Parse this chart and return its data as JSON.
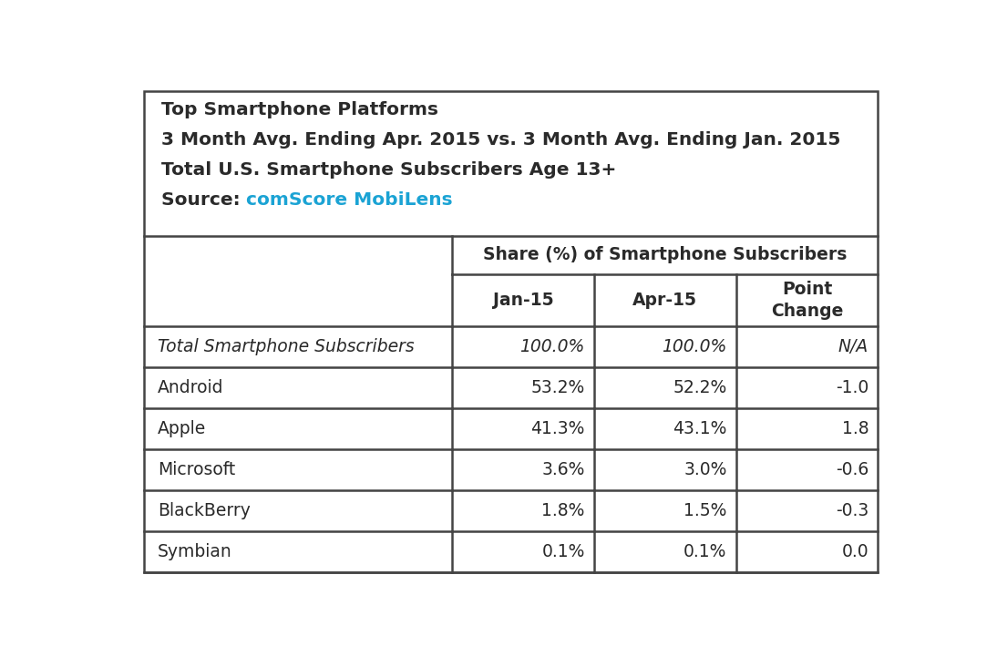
{
  "source_text": "comScore MobiLens",
  "source_color": "#1ba3d4",
  "header_span": "Share (%) of Smartphone Subscribers",
  "col_headers": [
    "Jan-15",
    "Apr-15",
    "Point\nChange"
  ],
  "rows": [
    {
      "label": "Total Smartphone Subscribers",
      "italic": true,
      "jan": "100.0%",
      "apr": "100.0%",
      "change": "N/A"
    },
    {
      "label": "Android",
      "italic": false,
      "jan": "53.2%",
      "apr": "52.2%",
      "change": "-1.0"
    },
    {
      "label": "Apple",
      "italic": false,
      "jan": "41.3%",
      "apr": "43.1%",
      "change": "1.8"
    },
    {
      "label": "Microsoft",
      "italic": false,
      "jan": "3.6%",
      "apr": "3.0%",
      "change": "-0.6"
    },
    {
      "label": "BlackBerry",
      "italic": false,
      "jan": "1.8%",
      "apr": "1.5%",
      "change": "-0.3"
    },
    {
      "label": "Symbian",
      "italic": false,
      "jan": "0.1%",
      "apr": "0.1%",
      "change": "0.0"
    }
  ],
  "bg_color": "#ffffff",
  "border_color": "#444444",
  "text_color": "#2a2a2a",
  "title_color": "#2a2a2a",
  "title_fontsize": 14.5,
  "header_fontsize": 13.5,
  "cell_fontsize": 13.5
}
